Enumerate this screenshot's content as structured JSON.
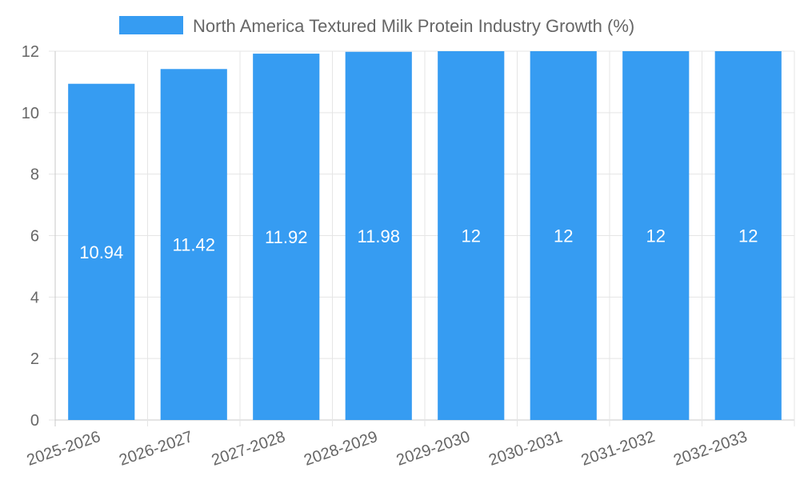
{
  "chart_data": {
    "type": "bar",
    "title": "",
    "xlabel": "",
    "ylabel": "",
    "categories": [
      "2025-2026",
      "2026-2027",
      "2027-2028",
      "2028-2029",
      "2029-2030",
      "2030-2031",
      "2031-2032",
      "2032-2033"
    ],
    "series": [
      {
        "name": "North America Textured Milk Protein Industry Growth (%)",
        "values": [
          10.94,
          11.42,
          11.92,
          11.98,
          12,
          12,
          12,
          12
        ],
        "data_labels": [
          "10.94",
          "11.42",
          "11.92",
          "11.98",
          "12",
          "12",
          "12",
          "12"
        ],
        "color": "#369cf2"
      }
    ],
    "ylim": [
      0,
      12
    ],
    "yticks": [
      0,
      2,
      4,
      6,
      8,
      10,
      12
    ],
    "grid": true,
    "legend_position": "top-center",
    "colors": {
      "grid": "#e5e5e5",
      "axis": "#c8c8c8",
      "text": "#666666",
      "label_text": "#ffffff"
    }
  }
}
